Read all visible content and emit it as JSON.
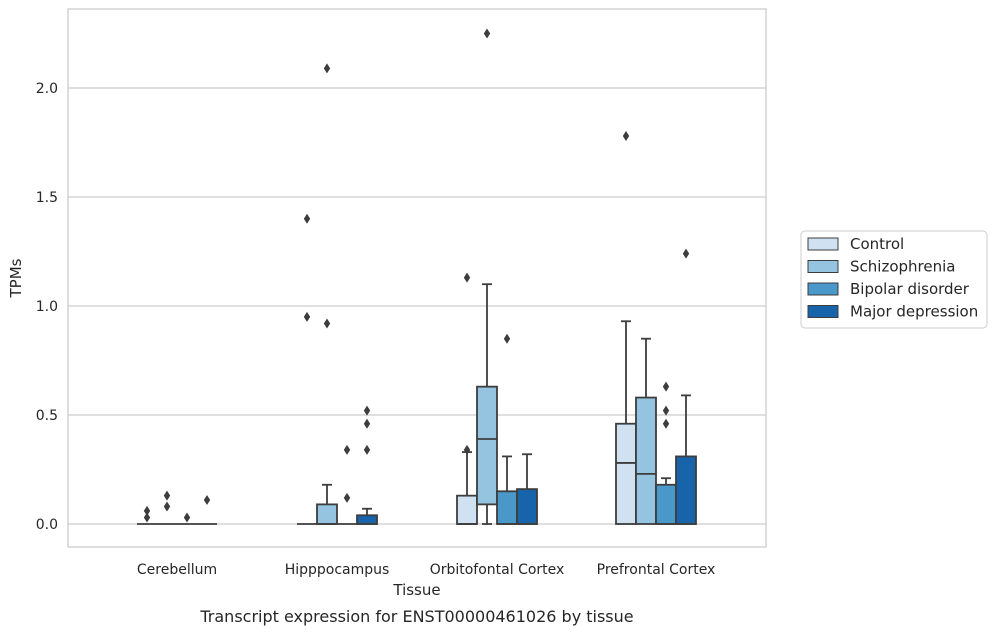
{
  "chart_data": {
    "type": "box",
    "title": "",
    "caption": "Transcript expression for ENST00000461026 by tissue",
    "xlabel": "Tissue",
    "ylabel": "TPMs",
    "categories": [
      "Cerebellum",
      "Hipppocampus",
      "Orbitofontal Cortex",
      "Prefrontal Cortex"
    ],
    "ylim": [
      -0.11,
      2.37
    ],
    "yticks": [
      {
        "value": 0.0,
        "label": "0.0"
      },
      {
        "value": 0.5,
        "label": "0.5"
      },
      {
        "value": 1.0,
        "label": "1.0"
      },
      {
        "value": 1.5,
        "label": "1.5"
      },
      {
        "value": 2.0,
        "label": "2.0"
      }
    ],
    "grid": "horizontal",
    "legend_position": "right",
    "series": [
      {
        "name": "Control",
        "color": "#d0e1f2",
        "boxes": [
          {
            "q1": 0,
            "median": 0,
            "q3": 0,
            "whisker_low": 0,
            "whisker_high": 0,
            "outliers": [
              0.03,
              0.06
            ]
          },
          {
            "q1": 0,
            "median": 0,
            "q3": 0,
            "whisker_low": 0,
            "whisker_high": 0,
            "outliers": [
              0.95,
              1.4
            ]
          },
          {
            "q1": 0,
            "median": 0,
            "q3": 0.13,
            "whisker_low": 0,
            "whisker_high": 0.33,
            "outliers": [
              0.34,
              1.13
            ]
          },
          {
            "q1": 0,
            "median": 0.28,
            "q3": 0.46,
            "whisker_low": 0,
            "whisker_high": 0.93,
            "outliers": [
              1.78
            ]
          }
        ]
      },
      {
        "name": "Schizophrenia",
        "color": "#94c4df",
        "boxes": [
          {
            "q1": 0,
            "median": 0,
            "q3": 0,
            "whisker_low": 0,
            "whisker_high": 0,
            "outliers": [
              0.08,
              0.13
            ]
          },
          {
            "q1": 0,
            "median": 0,
            "q3": 0.09,
            "whisker_low": 0,
            "whisker_high": 0.18,
            "outliers": [
              0.92,
              2.09
            ]
          },
          {
            "q1": 0.09,
            "median": 0.39,
            "q3": 0.63,
            "whisker_low": 0,
            "whisker_high": 1.1,
            "outliers": [
              2.25
            ]
          },
          {
            "q1": 0,
            "median": 0.23,
            "q3": 0.58,
            "whisker_low": 0,
            "whisker_high": 0.85,
            "outliers": []
          }
        ]
      },
      {
        "name": "Bipolar disorder",
        "color": "#4a98c9",
        "boxes": [
          {
            "q1": 0,
            "median": 0,
            "q3": 0,
            "whisker_low": 0,
            "whisker_high": 0,
            "outliers": [
              0.03
            ]
          },
          {
            "q1": 0,
            "median": 0,
            "q3": 0,
            "whisker_low": 0,
            "whisker_high": 0,
            "outliers": [
              0.12,
              0.34
            ]
          },
          {
            "q1": 0,
            "median": 0,
            "q3": 0.15,
            "whisker_low": 0,
            "whisker_high": 0.31,
            "outliers": [
              0.85
            ]
          },
          {
            "q1": 0,
            "median": 0,
            "q3": 0.18,
            "whisker_low": 0,
            "whisker_high": 0.21,
            "outliers": [
              0.46,
              0.52,
              0.63
            ]
          }
        ]
      },
      {
        "name": "Major depression",
        "color": "#1764ab",
        "boxes": [
          {
            "q1": 0,
            "median": 0,
            "q3": 0,
            "whisker_low": 0,
            "whisker_high": 0,
            "outliers": [
              0.11
            ]
          },
          {
            "q1": 0,
            "median": 0,
            "q3": 0.04,
            "whisker_low": 0,
            "whisker_high": 0.07,
            "outliers": [
              0.34,
              0.46,
              0.52
            ]
          },
          {
            "q1": 0,
            "median": 0,
            "q3": 0.16,
            "whisker_low": 0,
            "whisker_high": 0.32,
            "outliers": []
          },
          {
            "q1": 0,
            "median": 0,
            "q3": 0.31,
            "whisker_low": 0,
            "whisker_high": 0.59,
            "outliers": [
              1.24
            ]
          }
        ]
      }
    ]
  }
}
